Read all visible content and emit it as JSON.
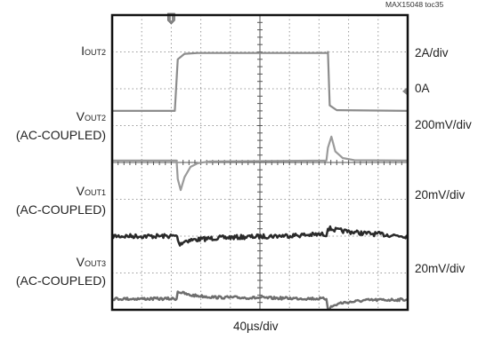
{
  "chart_data": {
    "type": "line",
    "reference_id": "MAX15048 toc35",
    "xlabel": "40µs/div",
    "grid": true,
    "divisions": {
      "x": 10,
      "y": 8
    },
    "trigger_marker": "T",
    "channels": [
      {
        "key": "iout2",
        "label_main": "I",
        "label_sub": "OUT2",
        "label_line2": "",
        "scale": "2A/div",
        "extra_label": "0A",
        "color": "#8c8c8c",
        "points": [
          [
            0,
            2.6
          ],
          [
            2.12,
            2.6
          ],
          [
            2.22,
            1.2
          ],
          [
            2.45,
            1.05
          ],
          [
            2.9,
            1.03
          ],
          [
            7.3,
            1.03
          ],
          [
            7.3,
            1.0
          ],
          [
            7.36,
            2.45
          ],
          [
            7.6,
            2.58
          ],
          [
            10,
            2.6
          ]
        ]
      },
      {
        "key": "vout2",
        "label_main": "V",
        "label_sub": "OUT2",
        "label_line2": "(AC-COUPLED)",
        "scale": "200mV/div",
        "extra_label": "",
        "color": "#9a9a9a",
        "points": [
          [
            0,
            3.95
          ],
          [
            2.18,
            3.95
          ],
          [
            2.22,
            4.45
          ],
          [
            2.32,
            4.75
          ],
          [
            2.45,
            4.4
          ],
          [
            2.65,
            4.12
          ],
          [
            2.9,
            4.02
          ],
          [
            3.3,
            3.97
          ],
          [
            7.25,
            3.95
          ],
          [
            7.3,
            3.6
          ],
          [
            7.42,
            3.3
          ],
          [
            7.55,
            3.7
          ],
          [
            7.8,
            3.88
          ],
          [
            8.2,
            3.94
          ],
          [
            10,
            3.95
          ]
        ]
      },
      {
        "key": "vout1",
        "label_main": "V",
        "label_sub": "OUT1",
        "label_line2": "(AC-COUPLED)",
        "scale": "20mV/div",
        "extra_label": "",
        "color": "#2a2a2a",
        "noise_width": 5,
        "points": [
          [
            0,
            6.0
          ],
          [
            2.2,
            6.0
          ],
          [
            2.26,
            6.22
          ],
          [
            2.5,
            6.12
          ],
          [
            3.5,
            6.05
          ],
          [
            7.25,
            5.95
          ],
          [
            7.3,
            5.78
          ],
          [
            7.6,
            5.84
          ],
          [
            8.5,
            5.92
          ],
          [
            10,
            6.0
          ]
        ]
      },
      {
        "key": "vout3",
        "label_main": "V",
        "label_sub": "OUT3",
        "label_line2": "(AC-COUPLED)",
        "scale": "20mV/div",
        "extra_label": "",
        "color": "#6e6e6e",
        "noise_width": 3,
        "points": [
          [
            0,
            7.7
          ],
          [
            2.18,
            7.7
          ],
          [
            2.22,
            7.5
          ],
          [
            2.6,
            7.6
          ],
          [
            3.5,
            7.66
          ],
          [
            7.25,
            7.7
          ],
          [
            7.3,
            7.96
          ],
          [
            7.7,
            7.82
          ],
          [
            8.6,
            7.74
          ],
          [
            10,
            7.72
          ]
        ]
      }
    ]
  }
}
